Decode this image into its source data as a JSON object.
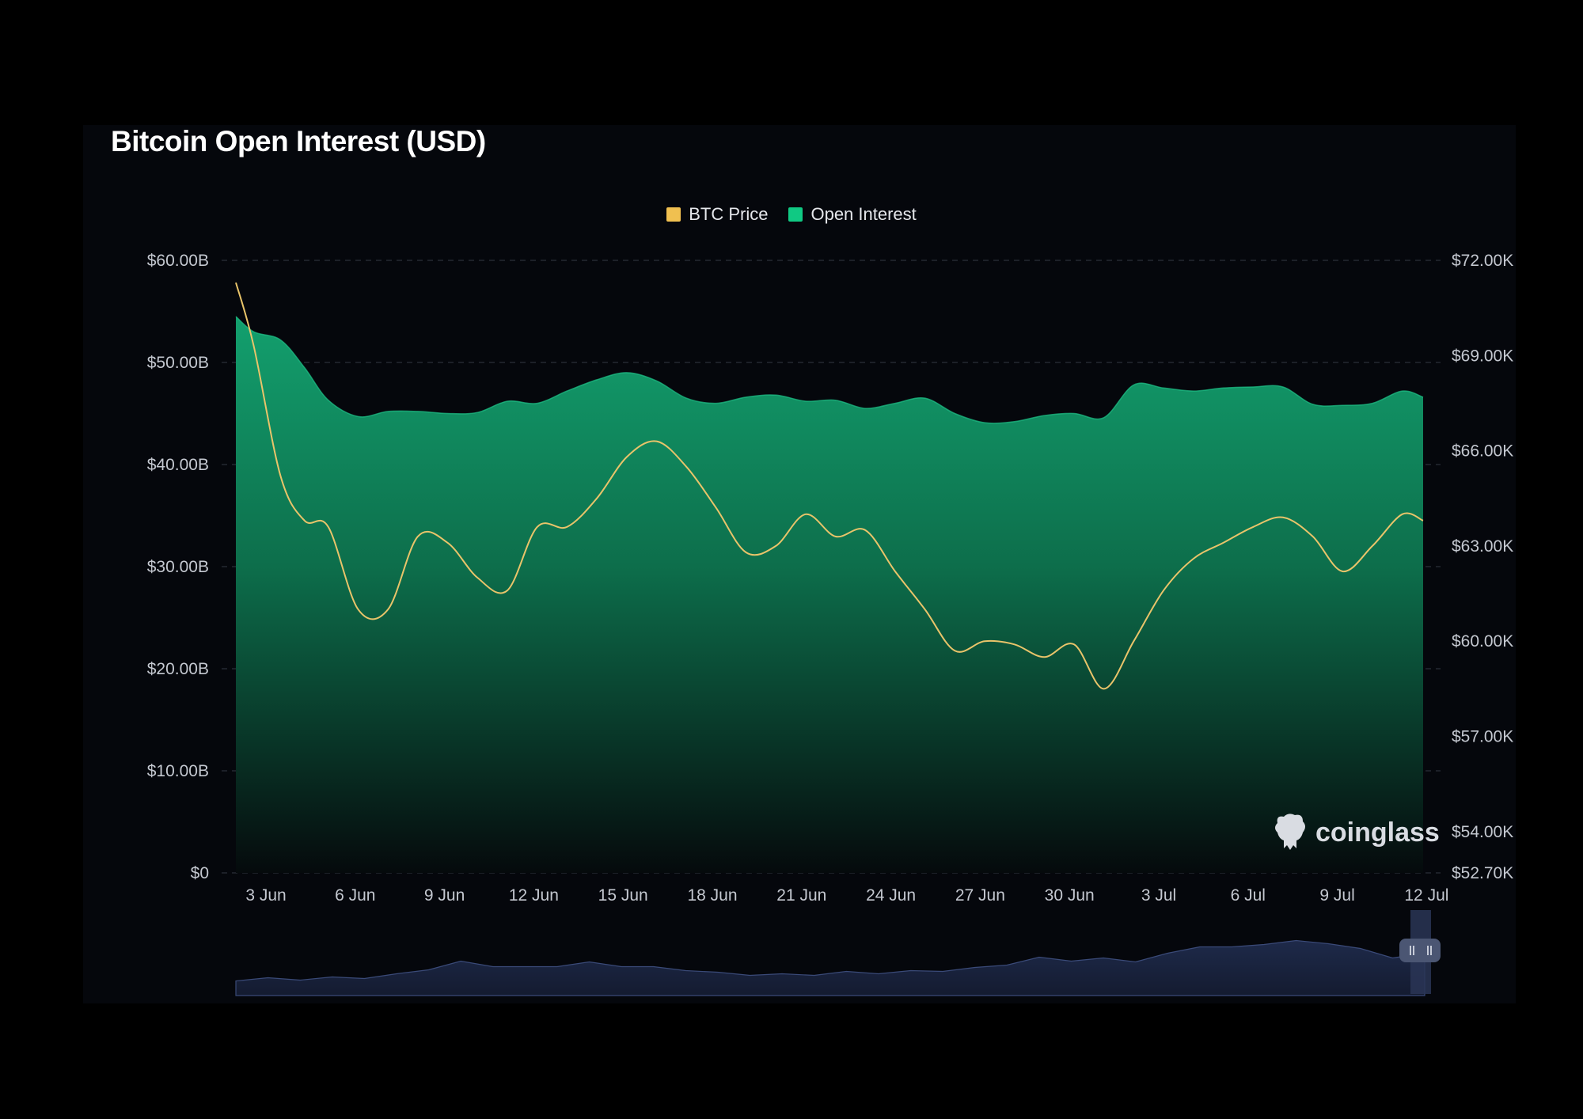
{
  "chart_data": {
    "type": "area",
    "title": "Bitcoin Open Interest (USD)",
    "legend": [
      "BTC Price",
      "Open Interest"
    ],
    "legend_position": "top-center",
    "x_tick_labels": [
      "3 Jun",
      "6 Jun",
      "9 Jun",
      "12 Jun",
      "15 Jun",
      "18 Jun",
      "21 Jun",
      "24 Jun",
      "27 Jun",
      "30 Jun",
      "3 Jul",
      "6 Jul",
      "9 Jul",
      "12 Jul"
    ],
    "x_days": [
      1.9,
      2.5,
      3.4,
      4.2,
      5.0,
      6.0,
      7.0,
      8.0,
      9.0,
      10.0,
      11.0,
      12.0,
      13.0,
      14.0,
      15.0,
      16.0,
      17.0,
      18.0,
      19.0,
      20.0,
      21.0,
      22.0,
      23.0,
      24.0,
      25.0,
      26.0,
      27.0,
      28.0,
      29.0,
      30.0,
      31.0,
      32.0,
      33.0,
      34.0,
      35.0,
      36.0,
      37.0,
      38.0,
      39.0,
      40.0,
      41.0,
      41.7
    ],
    "left_axis": {
      "ticks": [
        "$0",
        "$10.00B",
        "$20.00B",
        "$30.00B",
        "$40.00B",
        "$50.00B",
        "$60.00B"
      ],
      "range": [
        0,
        60
      ]
    },
    "right_axis": {
      "ticks": [
        "$52.70K",
        "$54.00K",
        "$57.00K",
        "$60.00K",
        "$63.00K",
        "$66.00K",
        "$69.00K",
        "$72.00K"
      ],
      "range": [
        52.7,
        72
      ]
    },
    "series": [
      {
        "name": "Open Interest",
        "axis": "left",
        "unit": "USD billions",
        "color": "#10b981",
        "values": [
          54.5,
          53.0,
          52.2,
          49.5,
          46.3,
          44.7,
          45.2,
          45.2,
          45.0,
          45.1,
          46.2,
          46.0,
          47.2,
          48.3,
          49.0,
          48.2,
          46.5,
          46.0,
          46.6,
          46.8,
          46.2,
          46.3,
          45.5,
          46.0,
          46.5,
          45.0,
          44.1,
          44.2,
          44.8,
          45.0,
          44.6,
          47.8,
          47.5,
          47.2,
          47.5,
          47.6,
          47.6,
          45.9,
          45.8,
          46.0,
          47.2,
          46.6
        ]
      },
      {
        "name": "BTC Price",
        "axis": "right",
        "unit": "USD thousands",
        "color": "#e9c46a",
        "values": [
          71.3,
          69.3,
          65.2,
          63.8,
          63.6,
          61.0,
          61.0,
          63.3,
          63.1,
          62.0,
          61.6,
          63.6,
          63.6,
          64.5,
          65.8,
          66.3,
          65.5,
          64.2,
          62.8,
          63.0,
          64.0,
          63.3,
          63.5,
          62.2,
          61.0,
          59.7,
          60.0,
          59.9,
          59.5,
          59.9,
          58.5,
          60.0,
          61.6,
          62.6,
          63.1,
          63.6,
          63.9,
          63.3,
          62.2,
          63.0,
          64.0,
          63.8
        ]
      }
    ],
    "grid": "horizontal-dashed",
    "navigator_values": [
      20,
      21,
      21,
      22,
      23,
      26,
      34,
      42,
      38,
      35,
      38,
      41,
      38,
      35,
      33,
      28,
      27,
      26,
      27,
      29,
      29,
      30,
      32,
      34,
      40,
      47,
      45,
      46,
      44,
      52,
      63,
      60,
      66,
      68,
      67,
      58,
      49,
      52
    ]
  },
  "watermark_text": "coinglass",
  "colors": {
    "background": "#000000",
    "panel": "#05070c",
    "open_interest": "#10b981",
    "btc_price": "#e9c46a",
    "navigator": "#1c2642"
  }
}
